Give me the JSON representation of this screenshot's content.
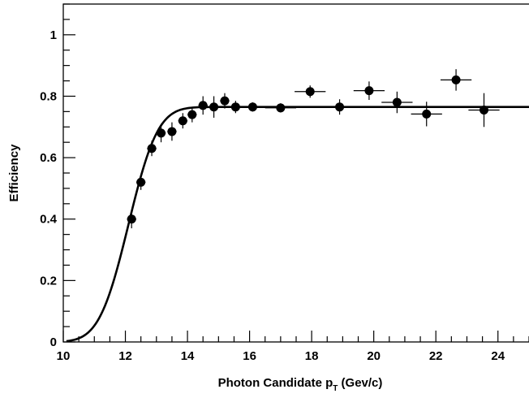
{
  "chart_data": {
    "type": "scatter",
    "xlabel": {
      "main": "Photon Candidate p",
      "subscript": "T",
      "unit": " (Gev/c)"
    },
    "ylabel": "Efficiency",
    "xlim": [
      10,
      25
    ],
    "ylim": [
      0,
      1.1
    ],
    "x_major_ticks": [
      10,
      12,
      14,
      16,
      18,
      20,
      22,
      24
    ],
    "x_minor_step": 0.5,
    "y_major_ticks": [
      0,
      0.2,
      0.4,
      0.6,
      0.8,
      1
    ],
    "y_minor_step": 0.05,
    "x_tick_labels": [
      "10",
      "12",
      "14",
      "16",
      "18",
      "20",
      "22",
      "24"
    ],
    "y_tick_labels": [
      "0",
      "0.2",
      "0.4",
      "0.6",
      "0.8",
      "1"
    ],
    "grid": false,
    "series": [
      {
        "kind": "points-with-error-bars",
        "points": [
          {
            "x": 12.2,
            "y": 0.4,
            "xerr": 0.15,
            "yerr": 0.03
          },
          {
            "x": 12.5,
            "y": 0.52,
            "xerr": 0.15,
            "yerr": 0.025
          },
          {
            "x": 12.85,
            "y": 0.63,
            "xerr": 0.15,
            "yerr": 0.025
          },
          {
            "x": 13.15,
            "y": 0.68,
            "xerr": 0.15,
            "yerr": 0.03
          },
          {
            "x": 13.5,
            "y": 0.685,
            "xerr": 0.15,
            "yerr": 0.03
          },
          {
            "x": 13.85,
            "y": 0.72,
            "xerr": 0.15,
            "yerr": 0.025
          },
          {
            "x": 14.15,
            "y": 0.74,
            "xerr": 0.15,
            "yerr": 0.025
          },
          {
            "x": 14.5,
            "y": 0.77,
            "xerr": 0.15,
            "yerr": 0.03
          },
          {
            "x": 14.85,
            "y": 0.765,
            "xerr": 0.15,
            "yerr": 0.035
          },
          {
            "x": 15.2,
            "y": 0.785,
            "xerr": 0.15,
            "yerr": 0.025
          },
          {
            "x": 15.55,
            "y": 0.765,
            "xerr": 0.2,
            "yerr": 0.02
          },
          {
            "x": 16.1,
            "y": 0.765,
            "xerr": 0.3,
            "yerr": 0.015
          },
          {
            "x": 17.0,
            "y": 0.762,
            "xerr": 0.5,
            "yerr": 0.015
          },
          {
            "x": 17.95,
            "y": 0.815,
            "xerr": 0.5,
            "yerr": 0.02
          },
          {
            "x": 18.9,
            "y": 0.765,
            "xerr": 0.5,
            "yerr": 0.025
          },
          {
            "x": 19.85,
            "y": 0.818,
            "xerr": 0.5,
            "yerr": 0.03
          },
          {
            "x": 20.75,
            "y": 0.78,
            "xerr": 0.5,
            "yerr": 0.035
          },
          {
            "x": 21.7,
            "y": 0.742,
            "xerr": 0.5,
            "yerr": 0.04
          },
          {
            "x": 22.65,
            "y": 0.853,
            "xerr": 0.5,
            "yerr": 0.035
          },
          {
            "x": 23.55,
            "y": 0.755,
            "xerr": 0.5,
            "yerr": 0.055
          }
        ]
      },
      {
        "kind": "fit-curve",
        "function": "error-function",
        "plateau": 0.765,
        "midpoint": 12.1,
        "width": 1.05,
        "x_range": [
          10.1,
          25
        ]
      }
    ],
    "colors": {
      "axes": "#000000",
      "markers": "#000000",
      "curve": "#000000",
      "background": "#ffffff"
    }
  }
}
